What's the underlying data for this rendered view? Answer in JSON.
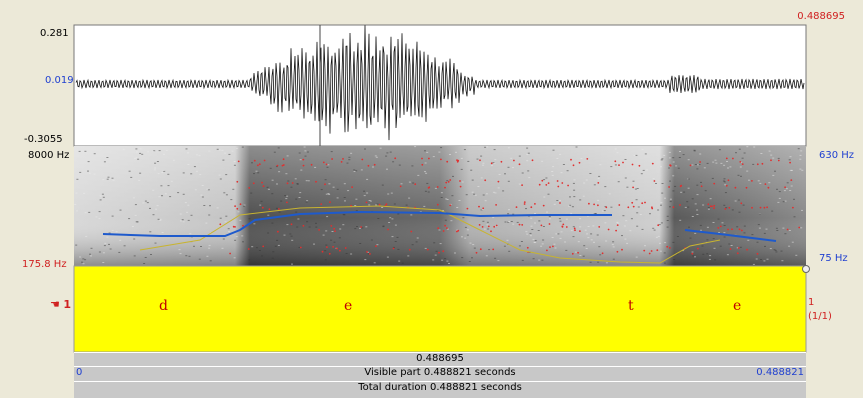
{
  "header": {
    "cursor_time": "0.488695"
  },
  "waveform": {
    "max": "0.281",
    "value": "0.019",
    "min": "-0.3055"
  },
  "spectrogram": {
    "top": "8000 Hz",
    "bottom": "175.8 Hz",
    "pitch_top": "630 Hz",
    "pitch_bottom": "75 Hz"
  },
  "tier": {
    "number": "1",
    "labels": [
      "d",
      "e",
      "t",
      "e"
    ],
    "right_number": "1",
    "right_count": "(1/1)"
  },
  "footer": {
    "selection": "0.488695",
    "start": "0",
    "visible": "Visible part 0.488821 seconds",
    "end": "0.488821",
    "total": "Total duration 0.488821 seconds"
  }
}
